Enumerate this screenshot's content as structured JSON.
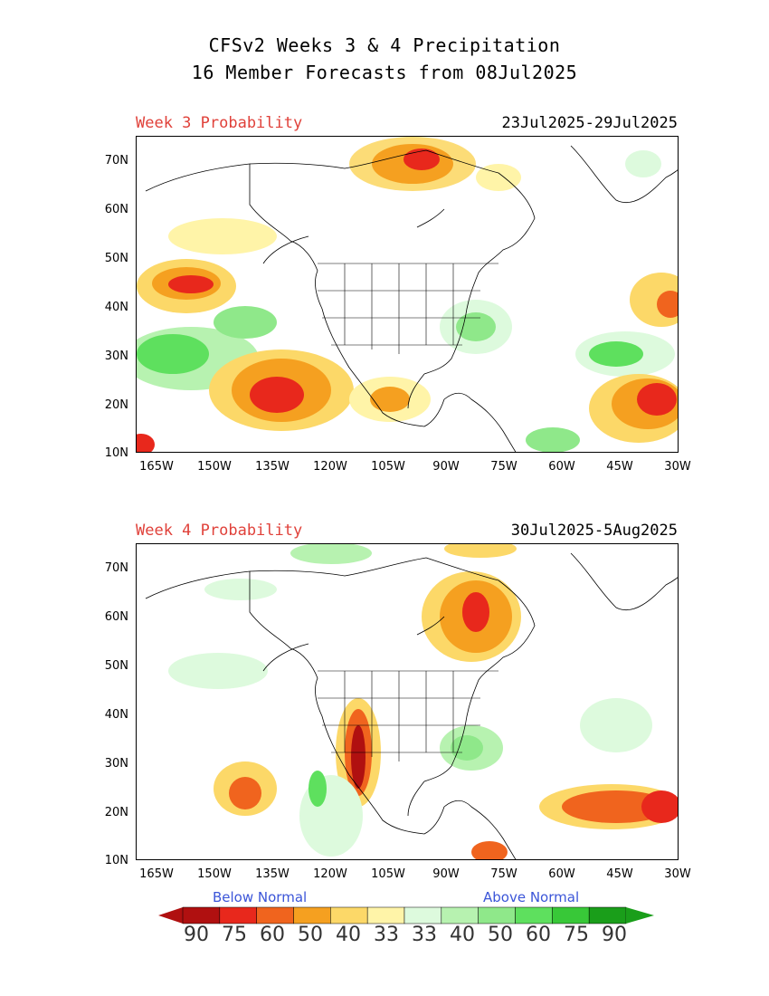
{
  "header": {
    "title_line1": "CFSv2 Weeks 3 & 4 Precipitation",
    "title_line2": "16 Member Forecasts from 08Jul2025"
  },
  "panels": [
    {
      "label": "Week 3 Probability",
      "dates": "23Jul2025-29Jul2025"
    },
    {
      "label": "Week 4 Probability",
      "dates": "30Jul2025-5Aug2025"
    }
  ],
  "axes": {
    "lat_labels": [
      "70N",
      "60N",
      "50N",
      "40N",
      "30N",
      "20N",
      "10N"
    ],
    "lon_labels": [
      "165W",
      "150W",
      "135W",
      "120W",
      "105W",
      "90W",
      "75W",
      "60W",
      "45W",
      "30W"
    ]
  },
  "legend": {
    "below_label": "Below Normal",
    "above_label": "Above Normal",
    "values": [
      "90",
      "75",
      "60",
      "50",
      "40",
      "33",
      "33",
      "40",
      "50",
      "60",
      "75",
      "90"
    ],
    "colors_below": [
      "#b01010",
      "#e8281c",
      "#f0641e",
      "#f5a020",
      "#fcd868",
      "#fff4a8"
    ],
    "colors_above": [
      "#ddfadd",
      "#b7f2b0",
      "#8fe88a",
      "#5ee05e",
      "#38c838",
      "#1a9e1a"
    ]
  },
  "colors": {
    "week_label": "#e0413a",
    "legend_caption": "#3b55d8"
  }
}
